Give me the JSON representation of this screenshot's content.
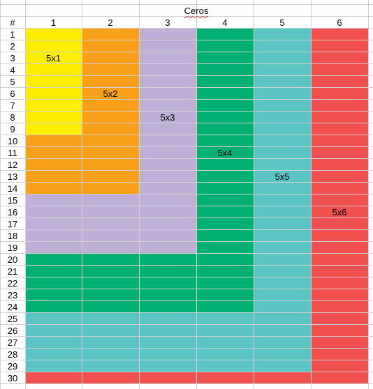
{
  "sheet": {
    "title": "Ceros",
    "corner": "#",
    "columns": [
      "1",
      "2",
      "3",
      "4",
      "5",
      "6"
    ],
    "rows": [
      "1",
      "2",
      "3",
      "4",
      "5",
      "6",
      "7",
      "8",
      "9",
      "10",
      "11",
      "12",
      "13",
      "14",
      "15",
      "16",
      "17",
      "18",
      "19",
      "20",
      "21",
      "22",
      "23",
      "24",
      "25",
      "26",
      "27",
      "28",
      "29",
      "30"
    ]
  },
  "blocks": [
    {
      "label": "5x1",
      "color": "#ffee00",
      "cols": 1,
      "rows": 9,
      "label_row": 3,
      "label_col": 1
    },
    {
      "label": "5x2",
      "color": "#f9a01b",
      "cols": 2,
      "rows": 14,
      "label_row": 6,
      "label_col": 2
    },
    {
      "label": "5x3",
      "color": "#bdafd6",
      "cols": 3,
      "rows": 19,
      "label_row": 8,
      "label_col": 3
    },
    {
      "label": "5x4",
      "color": "#00b172",
      "cols": 4,
      "rows": 24,
      "label_row": 11,
      "label_col": 4
    },
    {
      "label": "5x5",
      "color": "#5bc5c6",
      "cols": 5,
      "rows": 29,
      "label_row": 13,
      "label_col": 5
    },
    {
      "label": "5x6",
      "color": "#f0504f",
      "cols": 6,
      "rows": 30,
      "label_row": 16,
      "label_col": 6
    }
  ]
}
